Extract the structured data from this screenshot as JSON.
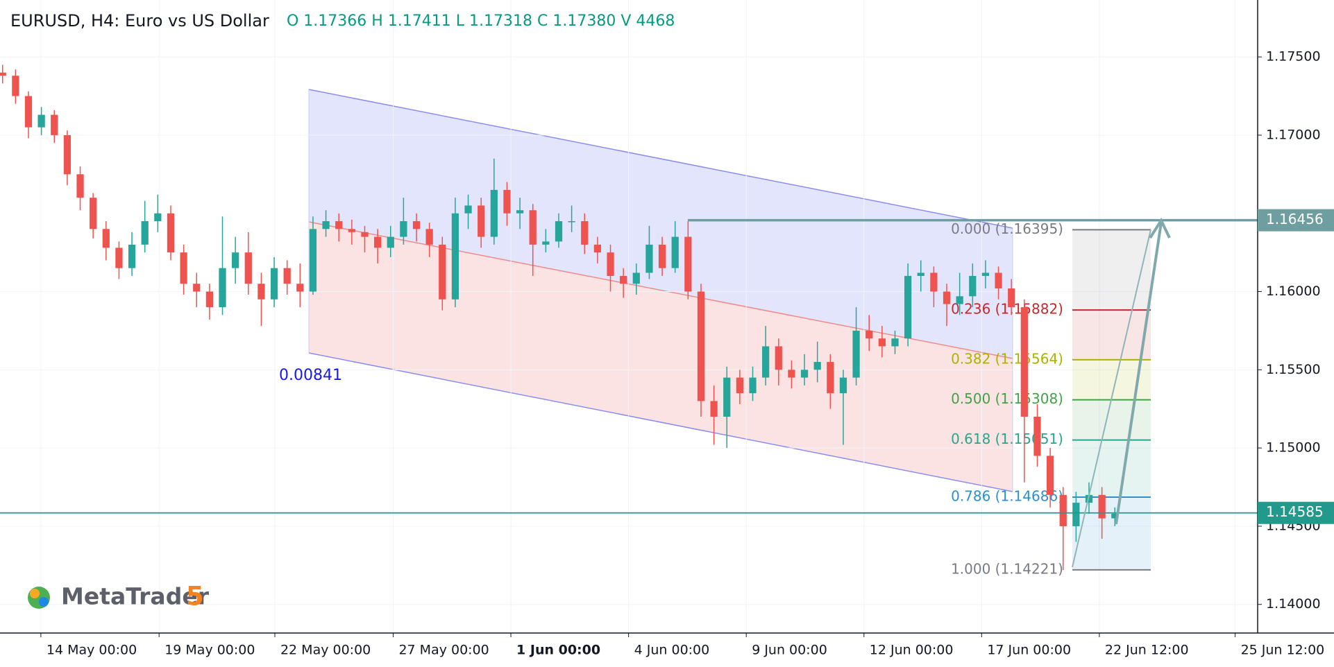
{
  "chart_data": {
    "type": "candlestick",
    "title": "EURUSD, H4: Euro vs US Dollar",
    "ohlc_text": "O 1.17366 H 1.17411 L 1.17318 C 1.17380 V 4468",
    "logo": "MetaTrader",
    "logo_version": "5",
    "up_color": "#26a69a",
    "down_color": "#ef5350",
    "ylim": [
      1.13817,
      1.17864
    ],
    "yticks": [
      {
        "value": 1.14,
        "label": "1.14000"
      },
      {
        "value": 1.145,
        "label": "1.14500"
      },
      {
        "value": 1.15,
        "label": "1.15000"
      },
      {
        "value": 1.155,
        "label": "1.15500"
      },
      {
        "value": 1.16,
        "label": "1.16000"
      },
      {
        "value": 1.17,
        "label": "1.17000"
      },
      {
        "value": 1.175,
        "label": "1.17500"
      }
    ],
    "xlim": [
      -0.2,
      97.04
    ],
    "xticks": [
      {
        "value": 2.96,
        "label": "14 May 00:00"
      },
      {
        "value": 12.1,
        "label": "19 May 00:00"
      },
      {
        "value": 21.05,
        "label": "22 May 00:00"
      },
      {
        "value": 30.2,
        "label": "27 May 00:00"
      },
      {
        "value": 39.3,
        "label": "1 Jun 00:00"
      },
      {
        "value": 48.4,
        "label": "4 Jun 00:00"
      },
      {
        "value": 57.5,
        "label": "9 Jun 00:00"
      },
      {
        "value": 66.6,
        "label": "12 Jun 00:00"
      },
      {
        "value": 75.7,
        "label": "17 Jun 00:00"
      },
      {
        "value": 84.8,
        "label": "22 Jun 12:00"
      },
      {
        "value": 95.3,
        "label": "25 Jun 12:00"
      }
    ],
    "ohlc": [
      [
        1.174,
        1.1745,
        1.1733,
        1.1738
      ],
      [
        1.1738,
        1.1742,
        1.172,
        1.1725
      ],
      [
        1.1725,
        1.1728,
        1.1698,
        1.1705
      ],
      [
        1.1705,
        1.1718,
        1.17,
        1.1713
      ],
      [
        1.1713,
        1.1716,
        1.1695,
        1.17
      ],
      [
        1.17,
        1.1703,
        1.1668,
        1.1675
      ],
      [
        1.1675,
        1.168,
        1.1652,
        1.166
      ],
      [
        1.166,
        1.1663,
        1.1634,
        1.164
      ],
      [
        1.164,
        1.1645,
        1.162,
        1.1628
      ],
      [
        1.1628,
        1.1632,
        1.1608,
        1.1615
      ],
      [
        1.1615,
        1.1638,
        1.161,
        1.163
      ],
      [
        1.163,
        1.1658,
        1.1625,
        1.1645
      ],
      [
        1.1645,
        1.1662,
        1.1638,
        1.165
      ],
      [
        1.165,
        1.1655,
        1.162,
        1.1625
      ],
      [
        1.1625,
        1.163,
        1.1598,
        1.1605
      ],
      [
        1.1605,
        1.1612,
        1.159,
        1.16
      ],
      [
        1.16,
        1.1605,
        1.1582,
        1.159
      ],
      [
        1.159,
        1.1648,
        1.1585,
        1.1615
      ],
      [
        1.1615,
        1.1635,
        1.1605,
        1.1625
      ],
      [
        1.1625,
        1.1638,
        1.1598,
        1.1605
      ],
      [
        1.1605,
        1.1612,
        1.1578,
        1.1595
      ],
      [
        1.1595,
        1.1622,
        1.159,
        1.1615
      ],
      [
        1.1615,
        1.162,
        1.1598,
        1.1605
      ],
      [
        1.1605,
        1.1618,
        1.159,
        1.16
      ],
      [
        1.16,
        1.1648,
        1.1598,
        1.164
      ],
      [
        1.164,
        1.1652,
        1.1635,
        1.1645
      ],
      [
        1.1645,
        1.165,
        1.1632,
        1.164
      ],
      [
        1.164,
        1.1646,
        1.163,
        1.1638
      ],
      [
        1.1638,
        1.1642,
        1.1625,
        1.1635
      ],
      [
        1.1635,
        1.164,
        1.1618,
        1.1628
      ],
      [
        1.1628,
        1.1642,
        1.1622,
        1.1635
      ],
      [
        1.1635,
        1.166,
        1.163,
        1.1645
      ],
      [
        1.1645,
        1.165,
        1.1632,
        1.164
      ],
      [
        1.164,
        1.1644,
        1.1622,
        1.163
      ],
      [
        1.163,
        1.1635,
        1.1588,
        1.1595
      ],
      [
        1.1595,
        1.166,
        1.159,
        1.165
      ],
      [
        1.165,
        1.1662,
        1.164,
        1.1655
      ],
      [
        1.1655,
        1.166,
        1.1628,
        1.1635
      ],
      [
        1.1635,
        1.1685,
        1.163,
        1.1665
      ],
      [
        1.1665,
        1.167,
        1.1642,
        1.165
      ],
      [
        1.165,
        1.166,
        1.164,
        1.1652
      ],
      [
        1.1652,
        1.1656,
        1.161,
        1.163
      ],
      [
        1.163,
        1.164,
        1.1625,
        1.1632
      ],
      [
        1.1632,
        1.165,
        1.1628,
        1.1645
      ],
      [
        1.1645,
        1.1655,
        1.1638,
        1.1645
      ],
      [
        1.1645,
        1.165,
        1.1624,
        1.163
      ],
      [
        1.163,
        1.1635,
        1.1618,
        1.1625
      ],
      [
        1.1625,
        1.163,
        1.16,
        1.161
      ],
      [
        1.161,
        1.1615,
        1.1596,
        1.1605
      ],
      [
        1.1605,
        1.1618,
        1.1598,
        1.1612
      ],
      [
        1.1612,
        1.1642,
        1.1608,
        1.163
      ],
      [
        1.163,
        1.1635,
        1.161,
        1.1615
      ],
      [
        1.1615,
        1.1645,
        1.1612,
        1.1635
      ],
      [
        1.1635,
        1.1645,
        1.1595,
        1.16
      ],
      [
        1.16,
        1.1605,
        1.152,
        1.153
      ],
      [
        1.153,
        1.154,
        1.1502,
        1.152
      ],
      [
        1.152,
        1.1552,
        1.15,
        1.1545
      ],
      [
        1.1545,
        1.155,
        1.1528,
        1.1535
      ],
      [
        1.1535,
        1.1552,
        1.153,
        1.1545
      ],
      [
        1.1545,
        1.1578,
        1.154,
        1.1565
      ],
      [
        1.1565,
        1.157,
        1.154,
        1.155
      ],
      [
        1.155,
        1.1556,
        1.1538,
        1.1545
      ],
      [
        1.1545,
        1.156,
        1.154,
        1.155
      ],
      [
        1.155,
        1.1568,
        1.1542,
        1.1555
      ],
      [
        1.1555,
        1.156,
        1.1525,
        1.1535
      ],
      [
        1.1535,
        1.155,
        1.1502,
        1.1545
      ],
      [
        1.1545,
        1.159,
        1.154,
        1.1575
      ],
      [
        1.1575,
        1.1585,
        1.1562,
        1.157
      ],
      [
        1.157,
        1.1578,
        1.1558,
        1.1565
      ],
      [
        1.1565,
        1.1575,
        1.156,
        1.157
      ],
      [
        1.157,
        1.1618,
        1.1565,
        1.161
      ],
      [
        1.161,
        1.162,
        1.16,
        1.1612
      ],
      [
        1.1612,
        1.1616,
        1.159,
        1.16
      ],
      [
        1.16,
        1.1605,
        1.1578,
        1.1592
      ],
      [
        1.1592,
        1.1612,
        1.1585,
        1.1597
      ],
      [
        1.1597,
        1.1618,
        1.159,
        1.161
      ],
      [
        1.161,
        1.162,
        1.1602,
        1.1612
      ],
      [
        1.1612,
        1.1616,
        1.1595,
        1.1602
      ],
      [
        1.1602,
        1.1608,
        1.1585,
        1.159
      ],
      [
        1.159,
        1.1595,
        1.1478,
        1.152
      ],
      [
        1.152,
        1.1528,
        1.1488,
        1.1495
      ],
      [
        1.1495,
        1.15,
        1.1462,
        1.147
      ],
      [
        1.147,
        1.1475,
        1.1422,
        1.145
      ],
      [
        1.145,
        1.1472,
        1.144,
        1.1465
      ],
      [
        1.1465,
        1.1478,
        1.1458,
        1.147
      ],
      [
        1.147,
        1.1475,
        1.1442,
        1.1455
      ],
      [
        1.1455,
        1.1462,
        1.145,
        1.1458
      ]
    ],
    "channel_label": "0.00841",
    "fibonacci": [
      {
        "value": 1.16395,
        "label": "0.000 (1.16395)",
        "color": "#787b86"
      },
      {
        "value": 1.15882,
        "label": "0.236 (1.15882)",
        "color": "#c62828"
      },
      {
        "value": 1.15564,
        "label": "0.382 (1.15564)",
        "color": "#a8b400"
      },
      {
        "value": 1.15308,
        "label": "0.500 (1.15308)",
        "color": "#43a047"
      },
      {
        "value": 1.15051,
        "label": "0.618 (1.15051)",
        "color": "#26a68a"
      },
      {
        "value": 1.14686,
        "label": "0.786 (1.14686)",
        "color": "#2b8fd0"
      },
      {
        "value": 1.14221,
        "label": "1.000 (1.14221)",
        "color": "#787b86"
      }
    ],
    "price_lines": [
      {
        "value": 1.16456,
        "color": "#6e9ea0"
      },
      {
        "value": 1.14585,
        "color": "#22998a"
      }
    ]
  }
}
